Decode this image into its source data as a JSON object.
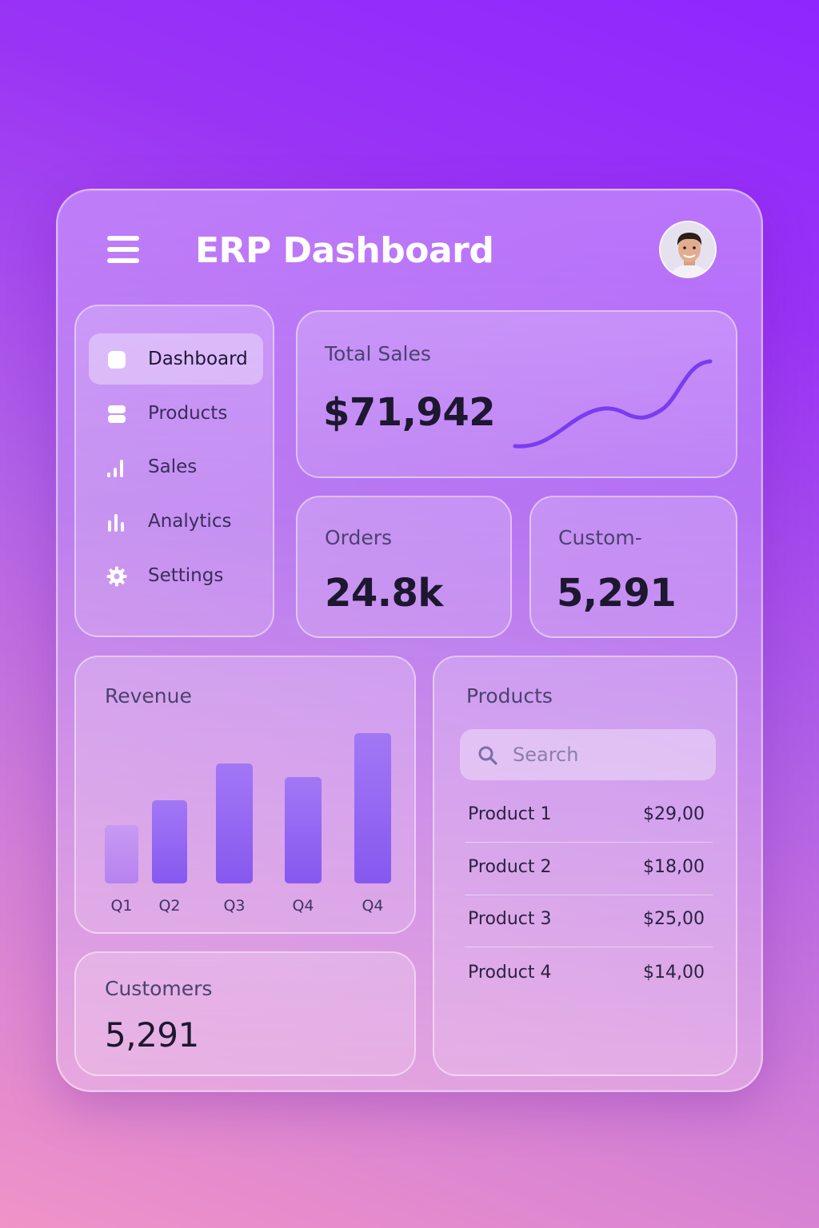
{
  "header": {
    "title": "ERP Dashboard",
    "menu_icon": "hamburger-menu-icon",
    "avatar": "user-avatar"
  },
  "sidebar": {
    "items": [
      {
        "label": "Dashboard",
        "icon": "square-icon",
        "active": true
      },
      {
        "label": "Products",
        "icon": "stack-icon",
        "active": false
      },
      {
        "label": "Sales",
        "icon": "signal-bars-icon",
        "active": false
      },
      {
        "label": "Analytics",
        "icon": "bar-chart-icon",
        "active": false
      },
      {
        "label": "Settings",
        "icon": "gear-icon",
        "active": false
      }
    ]
  },
  "total_sales": {
    "label": "Total Sales",
    "value": "$71,942",
    "sparkline_color": "#7a3cf0"
  },
  "orders": {
    "label": "Orders",
    "value": "24.8k"
  },
  "customers_small": {
    "label": "Custom-",
    "value": "5,291"
  },
  "revenue": {
    "label": "Revenue"
  },
  "chart_data": {
    "type": "bar",
    "title": "Revenue",
    "categories": [
      "Q1",
      "Q2",
      "Q3",
      "Q4",
      "Q4"
    ],
    "values": [
      33,
      47,
      68,
      60,
      85
    ],
    "ylim": [
      0,
      100
    ],
    "grid": false
  },
  "customers": {
    "label": "Customers",
    "value": "5,291"
  },
  "products": {
    "label": "Products",
    "search_placeholder": "Search",
    "rows": [
      {
        "name": "Product 1",
        "price": "$29,00"
      },
      {
        "name": "Product 2",
        "price": "$18,00"
      },
      {
        "name": "Product 3",
        "price": "$25,00"
      },
      {
        "name": "Product 4",
        "price": "$14,00"
      }
    ]
  },
  "colors": {
    "accent": "#8659ef",
    "text_dark": "#1d1730"
  }
}
